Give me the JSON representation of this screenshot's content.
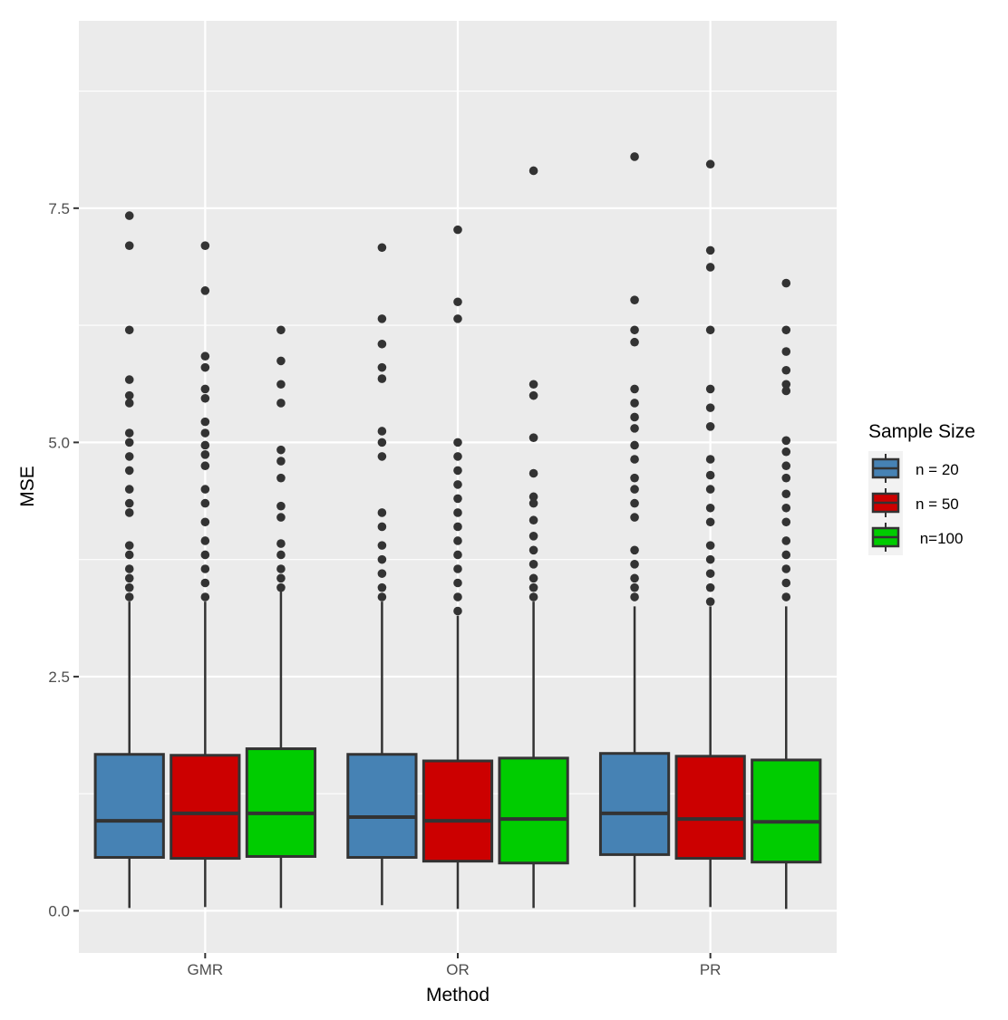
{
  "chart_data": {
    "type": "box",
    "xlabel": "Method",
    "ylabel": "MSE",
    "categories": [
      "GMR",
      "OR",
      "PR"
    ],
    "ylim": [
      -0.45,
      9.5
    ],
    "y_ticks": [
      0.0,
      2.5,
      5.0,
      7.5
    ],
    "y_tick_labels": [
      "0.0",
      "2.5",
      "5.0",
      "7.5"
    ],
    "grid": true,
    "legend": {
      "title": "Sample Size",
      "placement": "right",
      "entries": [
        "n = 20",
        "n = 50",
        " n=100"
      ]
    },
    "series": [
      {
        "name": "n = 20",
        "color": "#4682b4",
        "boxes": [
          {
            "category": "GMR",
            "min": 0.03,
            "q1": 0.57,
            "median": 0.96,
            "q3": 1.67,
            "max": 3.3,
            "outliers": [
              7.42,
              7.1,
              6.2,
              5.67,
              5.5,
              5.42,
              5.1,
              5.0,
              4.85,
              4.7,
              4.5,
              4.35,
              4.25,
              3.9,
              3.8,
              3.65,
              3.55,
              3.45,
              3.35
            ]
          },
          {
            "category": "OR",
            "min": 0.06,
            "q1": 0.57,
            "median": 1.0,
            "q3": 1.67,
            "max": 3.3,
            "outliers": [
              7.08,
              6.32,
              6.05,
              5.8,
              5.68,
              5.12,
              5.0,
              4.85,
              4.25,
              4.1,
              3.9,
              3.75,
              3.6,
              3.45,
              3.35
            ]
          },
          {
            "category": "PR",
            "min": 0.04,
            "q1": 0.6,
            "median": 1.04,
            "q3": 1.68,
            "max": 3.25,
            "outliers": [
              8.05,
              6.52,
              6.2,
              6.07,
              5.57,
              5.42,
              5.27,
              5.15,
              4.97,
              4.82,
              4.62,
              4.5,
              4.35,
              4.2,
              3.85,
              3.7,
              3.55,
              3.45,
              3.35
            ]
          }
        ]
      },
      {
        "name": "n = 50",
        "color": "#cc0000",
        "boxes": [
          {
            "category": "GMR",
            "min": 0.04,
            "q1": 0.56,
            "median": 1.04,
            "q3": 1.66,
            "max": 3.3,
            "outliers": [
              7.1,
              6.62,
              5.92,
              5.8,
              5.57,
              5.47,
              5.22,
              5.1,
              4.97,
              4.87,
              4.75,
              4.5,
              4.35,
              4.15,
              3.95,
              3.8,
              3.65,
              3.5,
              3.35
            ]
          },
          {
            "category": "OR",
            "min": 0.02,
            "q1": 0.53,
            "median": 0.96,
            "q3": 1.6,
            "max": 3.15,
            "outliers": [
              7.27,
              6.5,
              6.32,
              5.0,
              4.85,
              4.7,
              4.55,
              4.4,
              4.25,
              4.1,
              3.95,
              3.8,
              3.65,
              3.5,
              3.35,
              3.2
            ]
          },
          {
            "category": "PR",
            "min": 0.04,
            "q1": 0.56,
            "median": 0.98,
            "q3": 1.65,
            "max": 3.25,
            "outliers": [
              7.97,
              7.05,
              6.87,
              6.2,
              5.57,
              5.37,
              5.17,
              4.82,
              4.65,
              4.5,
              4.3,
              4.15,
              3.9,
              3.75,
              3.6,
              3.45,
              3.3
            ]
          }
        ]
      },
      {
        "name": " n=100",
        "color": "#00cc00",
        "boxes": [
          {
            "category": "GMR",
            "min": 0.03,
            "q1": 0.58,
            "median": 1.04,
            "q3": 1.73,
            "max": 3.45,
            "outliers": [
              6.2,
              5.87,
              5.62,
              5.42,
              4.92,
              4.8,
              4.62,
              4.32,
              4.2,
              3.92,
              3.8,
              3.65,
              3.55,
              3.45
            ]
          },
          {
            "category": "OR",
            "min": 0.03,
            "q1": 0.51,
            "median": 0.98,
            "q3": 1.63,
            "max": 3.3,
            "outliers": [
              7.9,
              5.62,
              5.5,
              5.05,
              4.67,
              4.42,
              4.35,
              4.17,
              4.0,
              3.85,
              3.7,
              3.55,
              3.45,
              3.35
            ]
          },
          {
            "category": "PR",
            "min": 0.02,
            "q1": 0.52,
            "median": 0.95,
            "q3": 1.61,
            "max": 3.25,
            "outliers": [
              6.7,
              6.2,
              5.97,
              5.77,
              5.62,
              5.55,
              5.02,
              4.9,
              4.75,
              4.62,
              4.45,
              4.3,
              4.15,
              3.95,
              3.8,
              3.65,
              3.5,
              3.35
            ]
          }
        ]
      }
    ]
  }
}
